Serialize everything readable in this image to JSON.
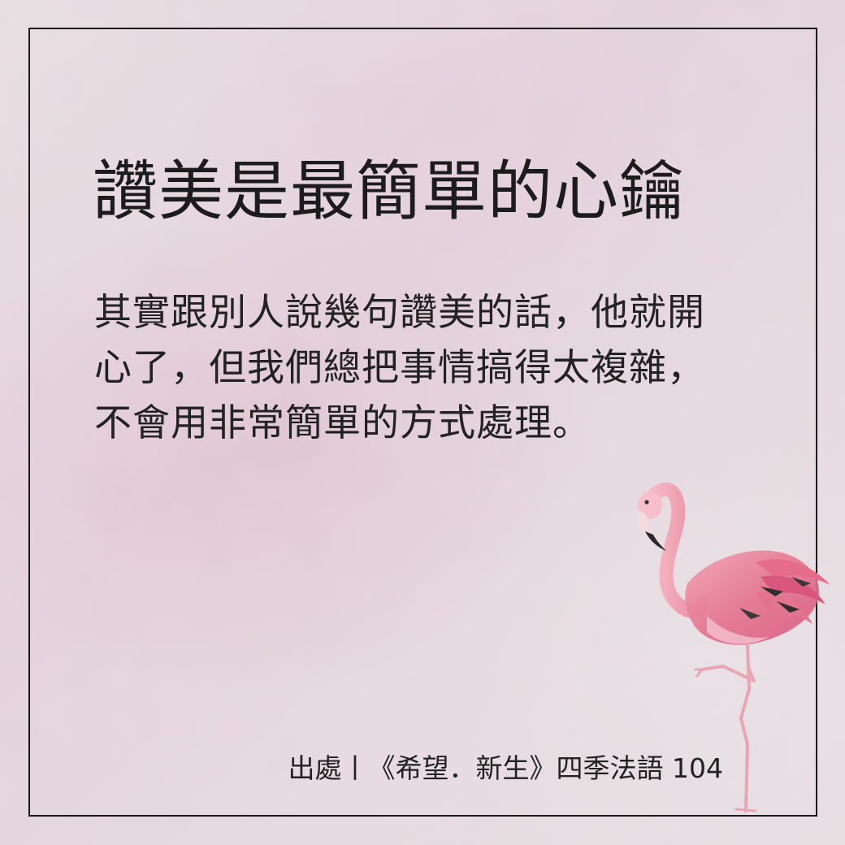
{
  "title": "讚美是最簡單的心鑰",
  "body_lines": [
    "其實跟別人說幾句讚美的話，他就開",
    "心了，但我們總把事情搞得太複雜，",
    "不會用非常簡單的方式處理。"
  ],
  "source": "出處丨《希望．新生》四季法語 104",
  "colors": {
    "text": "#1c1c1c",
    "frame": "#1a1a1a",
    "background": "#e8dde2",
    "flamingo": "#e8829a"
  },
  "icons": [
    "flamingo-illustration"
  ]
}
